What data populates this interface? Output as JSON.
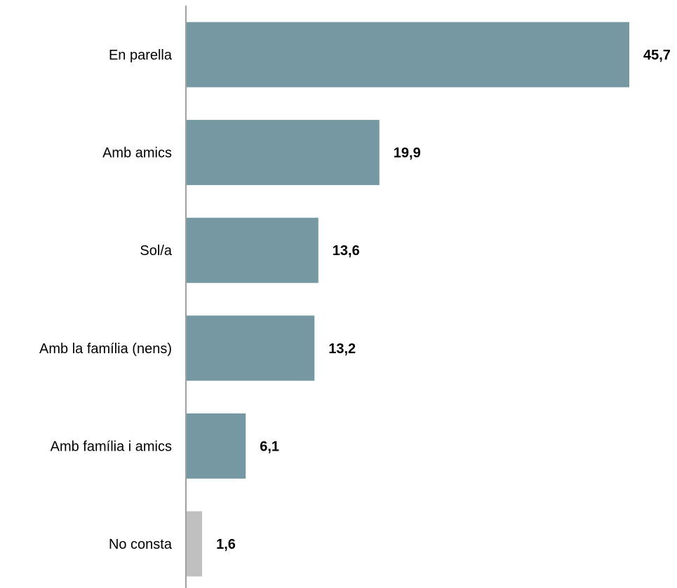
{
  "chart_data": {
    "type": "bar",
    "orientation": "horizontal",
    "categories": [
      "En parella",
      "Amb amics",
      "Sol/a",
      "Amb la família (nens)",
      "Amb família i amics",
      "No consta"
    ],
    "values": [
      45.7,
      19.9,
      13.6,
      13.2,
      6.1,
      1.6
    ],
    "value_labels": [
      "45,7",
      "19,9",
      "13,6",
      "13,2",
      "6,1",
      "1,6"
    ],
    "bar_colors": [
      "#7598a2",
      "#7598a2",
      "#7598a2",
      "#7598a2",
      "#7598a2",
      "#c0c0c0"
    ],
    "xlim": [
      0,
      45.7
    ],
    "grid": false,
    "legend": "none",
    "axis_color": "#808080"
  }
}
